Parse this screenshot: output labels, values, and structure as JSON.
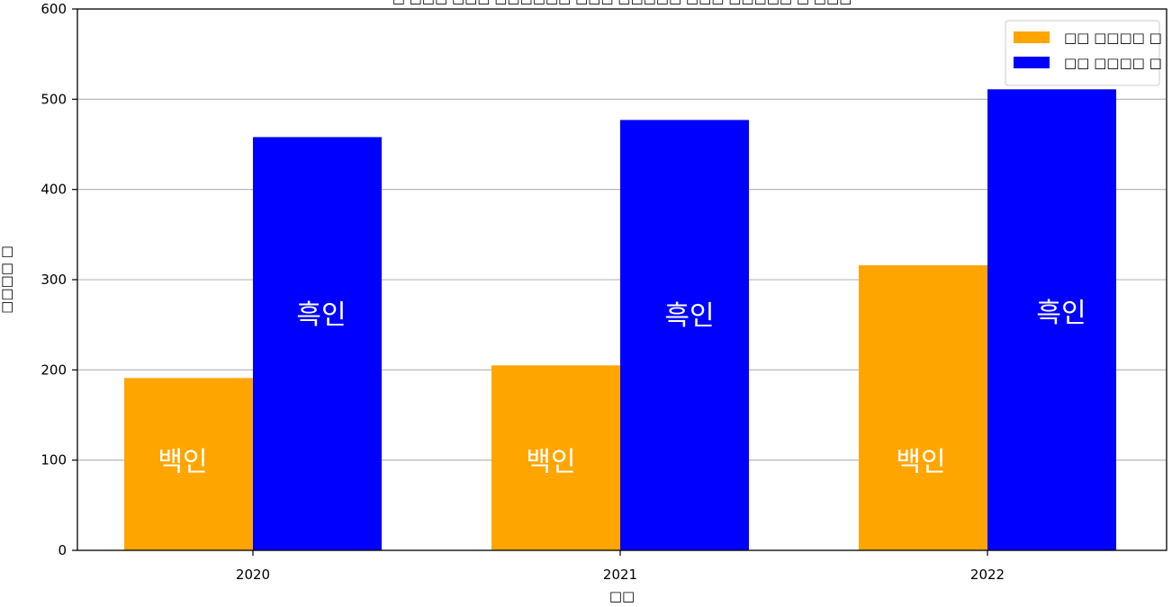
{
  "chart_data": {
    "type": "bar",
    "title": "□ □□□ □□□ □□□□□□ □□□ □□□□□ □□□ □□□□□ □ □□□",
    "xlabel": "□□",
    "ylabel": "□□□□ □",
    "categories": [
      "2020",
      "2021",
      "2022"
    ],
    "ylim": [
      0,
      600
    ],
    "yticks": [
      0,
      100,
      200,
      300,
      400,
      500,
      600
    ],
    "grid": "y",
    "legend_position": "top-right",
    "series": [
      {
        "name": "□□ □□□□ □",
        "color": "#FFA500",
        "label": "백인",
        "values": [
          191,
          205,
          316
        ]
      },
      {
        "name": "□□ □□□□ □",
        "color": "#0000FF",
        "label": "흑인",
        "values": [
          458,
          477,
          511
        ]
      }
    ]
  }
}
